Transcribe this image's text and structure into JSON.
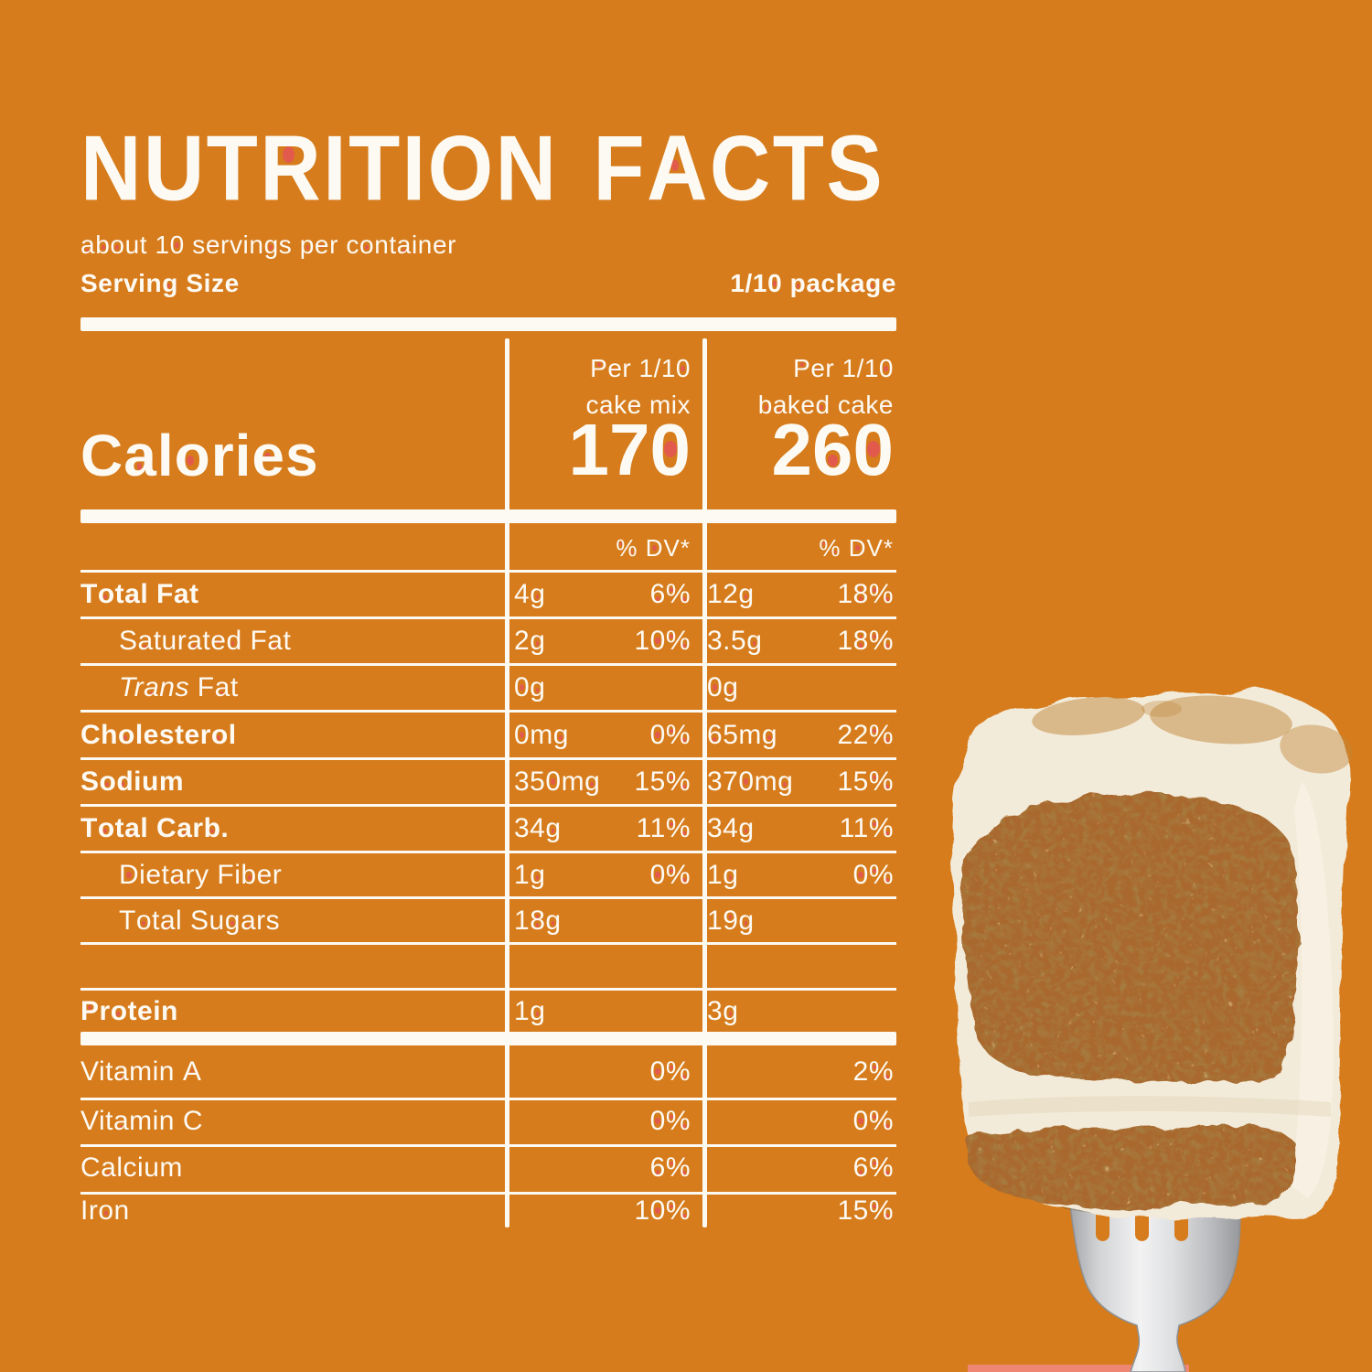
{
  "colors": {
    "bg": "#D67C1C",
    "red": "#E25A4C",
    "text": "#FDFAF3",
    "cream": "#F3EBDA",
    "cream-bright": "#FAF5E8",
    "cake": "#A9682D",
    "cinnamon": "#C08739",
    "metal-edge": "#8E9093",
    "salmon": "#EE8673"
  },
  "header": {
    "title_word1": "NUTRITION",
    "title_word2": "FACTS",
    "servings_note": "about 10 servings per container",
    "serving_size_label": "Serving Size",
    "serving_size_value": "1/10 package"
  },
  "columns": {
    "col1_line1": "Per 1/10",
    "col1_line2": "cake mix",
    "col2_line1": "Per 1/10",
    "col2_line2": "baked cake",
    "dv_header": "% DV*"
  },
  "calories": {
    "label": "Calories",
    "col1": "170",
    "col2": "260"
  },
  "rows": [
    {
      "label": "Total Fat",
      "bold": true,
      "indent": false,
      "v1": "4g",
      "dv1": "6%",
      "v2": "12g",
      "dv2": "18%"
    },
    {
      "label": "Saturated Fat",
      "bold": false,
      "indent": true,
      "v1": "2g",
      "dv1": "10%",
      "v2": "3.5g",
      "dv2": "18%"
    },
    {
      "label": "Trans Fat",
      "italic_prefix": "Trans",
      "bold": false,
      "indent": true,
      "v1": "0g",
      "dv1": "",
      "v2": "0g",
      "dv2": ""
    },
    {
      "label": "Cholesterol",
      "bold": true,
      "indent": false,
      "v1": "0mg",
      "dv1": "0%",
      "v2": "65mg",
      "dv2": "22%"
    },
    {
      "label": "Sodium",
      "bold": true,
      "indent": false,
      "v1": "350mg",
      "dv1": "15%",
      "v2": "370mg",
      "dv2": "15%"
    },
    {
      "label": "Total Carb.",
      "bold": true,
      "indent": false,
      "v1": "34g",
      "dv1": "11%",
      "v2": "34g",
      "dv2": "11%"
    },
    {
      "label": "Dietary Fiber",
      "bold": false,
      "indent": true,
      "v1": "1g",
      "dv1": "0%",
      "v2": "1g",
      "dv2": "0%"
    },
    {
      "label": "Total Sugars",
      "bold": false,
      "indent": true,
      "v1": "18g",
      "dv1": "",
      "v2": "19g",
      "dv2": ""
    },
    {
      "label": "",
      "blank": true
    },
    {
      "label": "Protein",
      "bold": true,
      "indent": false,
      "v1": "1g",
      "dv1": "",
      "v2": "3g",
      "dv2": ""
    }
  ],
  "vitamins": [
    {
      "label": "Vitamin A",
      "dv1": "0%",
      "dv2": "2%"
    },
    {
      "label": "Vitamin C",
      "dv1": "0%",
      "dv2": "0%"
    },
    {
      "label": "Calcium",
      "dv1": "6%",
      "dv2": "6%"
    },
    {
      "label": "Iron",
      "dv1": "10%",
      "dv2": "15%"
    }
  ],
  "photo": {
    "description": "slice of two-layer carrot cake with cream frosting held up on a fork"
  }
}
